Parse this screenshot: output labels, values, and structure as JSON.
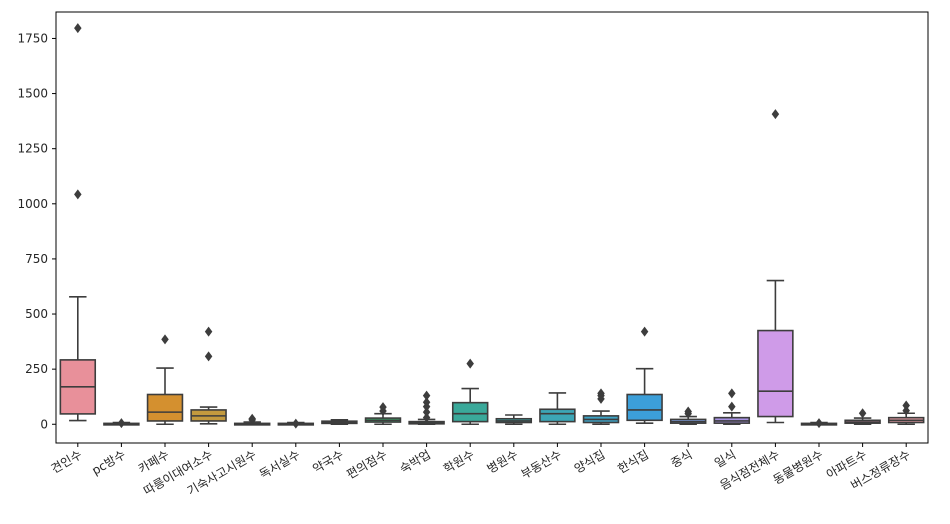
{
  "chart_data": {
    "type": "box",
    "title": "",
    "xlabel": "",
    "ylabel": "",
    "ylim": [
      -85,
      1870
    ],
    "yticks": [
      0,
      250,
      500,
      750,
      1000,
      1250,
      1500,
      1750
    ],
    "categories": [
      {
        "label": "견인수",
        "color": "#e8909a",
        "whislo": 17,
        "q1": 47,
        "med": 170,
        "q3": 292,
        "whishi": 578,
        "fliers": [
          1043,
          1797
        ]
      },
      {
        "label": "pc방수",
        "color": "#d9985a",
        "whislo": 0,
        "q1": 0,
        "med": 2,
        "q3": 4,
        "whishi": 8,
        "fliers": [
          5
        ]
      },
      {
        "label": "카페수",
        "color": "#d4902f",
        "whislo": 0,
        "q1": 15,
        "med": 55,
        "q3": 135,
        "whishi": 255,
        "fliers": [
          385
        ]
      },
      {
        "label": "따릉이대여소수",
        "color": "#c39a3e",
        "whislo": 2,
        "q1": 15,
        "med": 38,
        "q3": 65,
        "whishi": 78,
        "fliers": [
          308,
          420
        ]
      },
      {
        "label": "기숙사고시원수",
        "color": "#a9a53a",
        "whislo": 0,
        "q1": 0,
        "med": 1,
        "q3": 4,
        "whishi": 10,
        "fliers": [
          20,
          25
        ]
      },
      {
        "label": "독서실수",
        "color": "#8ca838",
        "whislo": 0,
        "q1": 0,
        "med": 1,
        "q3": 4,
        "whishi": 8,
        "fliers": [
          3
        ]
      },
      {
        "label": "약국수",
        "color": "#5fae47",
        "whislo": 0,
        "q1": 4,
        "med": 9,
        "q3": 14,
        "whishi": 20,
        "fliers": []
      },
      {
        "label": "편의점수",
        "color": "#3aae6b",
        "whislo": 0,
        "q1": 10,
        "med": 18,
        "q3": 28,
        "whishi": 48,
        "fliers": [
          60,
          78
        ]
      },
      {
        "label": "숙박업",
        "color": "#39a987",
        "whislo": 0,
        "q1": 2,
        "med": 6,
        "q3": 12,
        "whishi": 22,
        "fliers": [
          30,
          55,
          80,
          100,
          130
        ]
      },
      {
        "label": "학원수",
        "color": "#3aa99a",
        "whislo": 0,
        "q1": 12,
        "med": 48,
        "q3": 98,
        "whishi": 162,
        "fliers": [
          275
        ]
      },
      {
        "label": "병원수",
        "color": "#3ba9a9",
        "whislo": 0,
        "q1": 8,
        "med": 15,
        "q3": 25,
        "whishi": 42,
        "fliers": []
      },
      {
        "label": "부동산수",
        "color": "#3ca6b6",
        "whislo": 0,
        "q1": 12,
        "med": 48,
        "q3": 68,
        "whishi": 142,
        "fliers": []
      },
      {
        "label": "양식집",
        "color": "#3ea2c4",
        "whislo": 0,
        "q1": 8,
        "med": 22,
        "q3": 38,
        "whishi": 60,
        "fliers": [
          115,
          130,
          140
        ]
      },
      {
        "label": "한식집",
        "color": "#3c9fd9",
        "whislo": 5,
        "q1": 18,
        "med": 65,
        "q3": 135,
        "whishi": 252,
        "fliers": [
          420
        ]
      },
      {
        "label": "중식",
        "color": "#7e9fe0",
        "whislo": 0,
        "q1": 5,
        "med": 12,
        "q3": 22,
        "whishi": 35,
        "fliers": [
          48,
          58
        ]
      },
      {
        "label": "일식",
        "color": "#a792e3",
        "whislo": 0,
        "q1": 5,
        "med": 15,
        "q3": 30,
        "whishi": 52,
        "fliers": [
          80,
          140
        ]
      },
      {
        "label": "음식점전체수",
        "color": "#cf9be8",
        "whislo": 8,
        "q1": 35,
        "med": 150,
        "q3": 425,
        "whishi": 652,
        "fliers": [
          1407
        ]
      },
      {
        "label": "동물병원수",
        "color": "#e39ad3",
        "whislo": 0,
        "q1": 0,
        "med": 2,
        "q3": 4,
        "whishi": 8,
        "fliers": [
          5
        ]
      },
      {
        "label": "아파트수",
        "color": "#e99bb8",
        "whislo": 0,
        "q1": 5,
        "med": 10,
        "q3": 18,
        "whishi": 28,
        "fliers": [
          50
        ]
      },
      {
        "label": "버스정류장수",
        "color": "#eca0a8",
        "whislo": 0,
        "q1": 8,
        "med": 18,
        "q3": 30,
        "whishi": 50,
        "fliers": [
          62,
          85
        ]
      }
    ]
  }
}
